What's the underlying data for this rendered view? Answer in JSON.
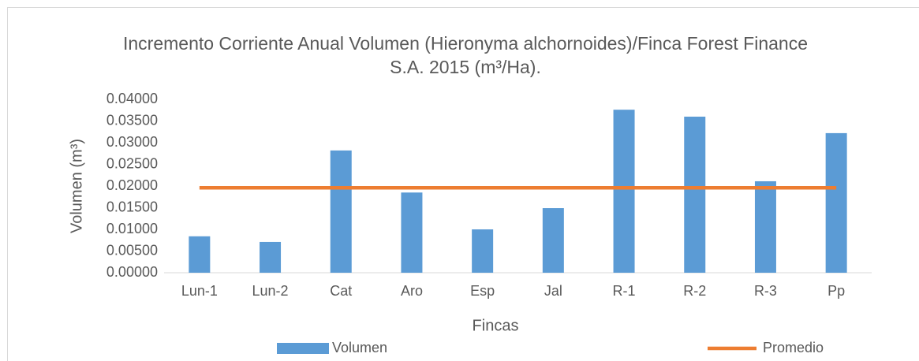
{
  "chart_data": {
    "type": "bar",
    "title": "Incremento Corriente Anual Volumen (Hieronyma alchornoides)/Finca Forest Finance S.A. 2015 (m³/Ha).",
    "x_label": "Fincas",
    "y_label": "Volumen (m³)",
    "categories": [
      "Lun-1",
      "Lun-2",
      "Cat",
      "Aro",
      "Esp",
      "Jal",
      "R-1",
      "R-2",
      "R-3",
      "Pp"
    ],
    "series": [
      {
        "name": "Volumen",
        "type": "bar",
        "color": "#5b9bd5",
        "values": [
          0.0084,
          0.0071,
          0.0282,
          0.0185,
          0.01,
          0.0149,
          0.0376,
          0.036,
          0.0211,
          0.0322
        ]
      },
      {
        "name": "Promedio",
        "type": "line",
        "color": "#ed7d31",
        "values": [
          0.0196,
          0.0196,
          0.0196,
          0.0196,
          0.0196,
          0.0196,
          0.0196,
          0.0196,
          0.0196,
          0.0196
        ]
      }
    ],
    "ylim": [
      0,
      0.04
    ],
    "yticks": [
      {
        "value": 0,
        "label": "0.00000"
      },
      {
        "value": 0.005,
        "label": "0.00500"
      },
      {
        "value": 0.01,
        "label": "0.01000"
      },
      {
        "value": 0.015,
        "label": "0.01500"
      },
      {
        "value": 0.02,
        "label": "0.02000"
      },
      {
        "value": 0.025,
        "label": "0.02500"
      },
      {
        "value": 0.03,
        "label": "0.03000"
      },
      {
        "value": 0.035,
        "label": "0.03500"
      },
      {
        "value": 0.04,
        "label": "0.04000"
      }
    ],
    "grid": false,
    "legend": "bottom"
  }
}
